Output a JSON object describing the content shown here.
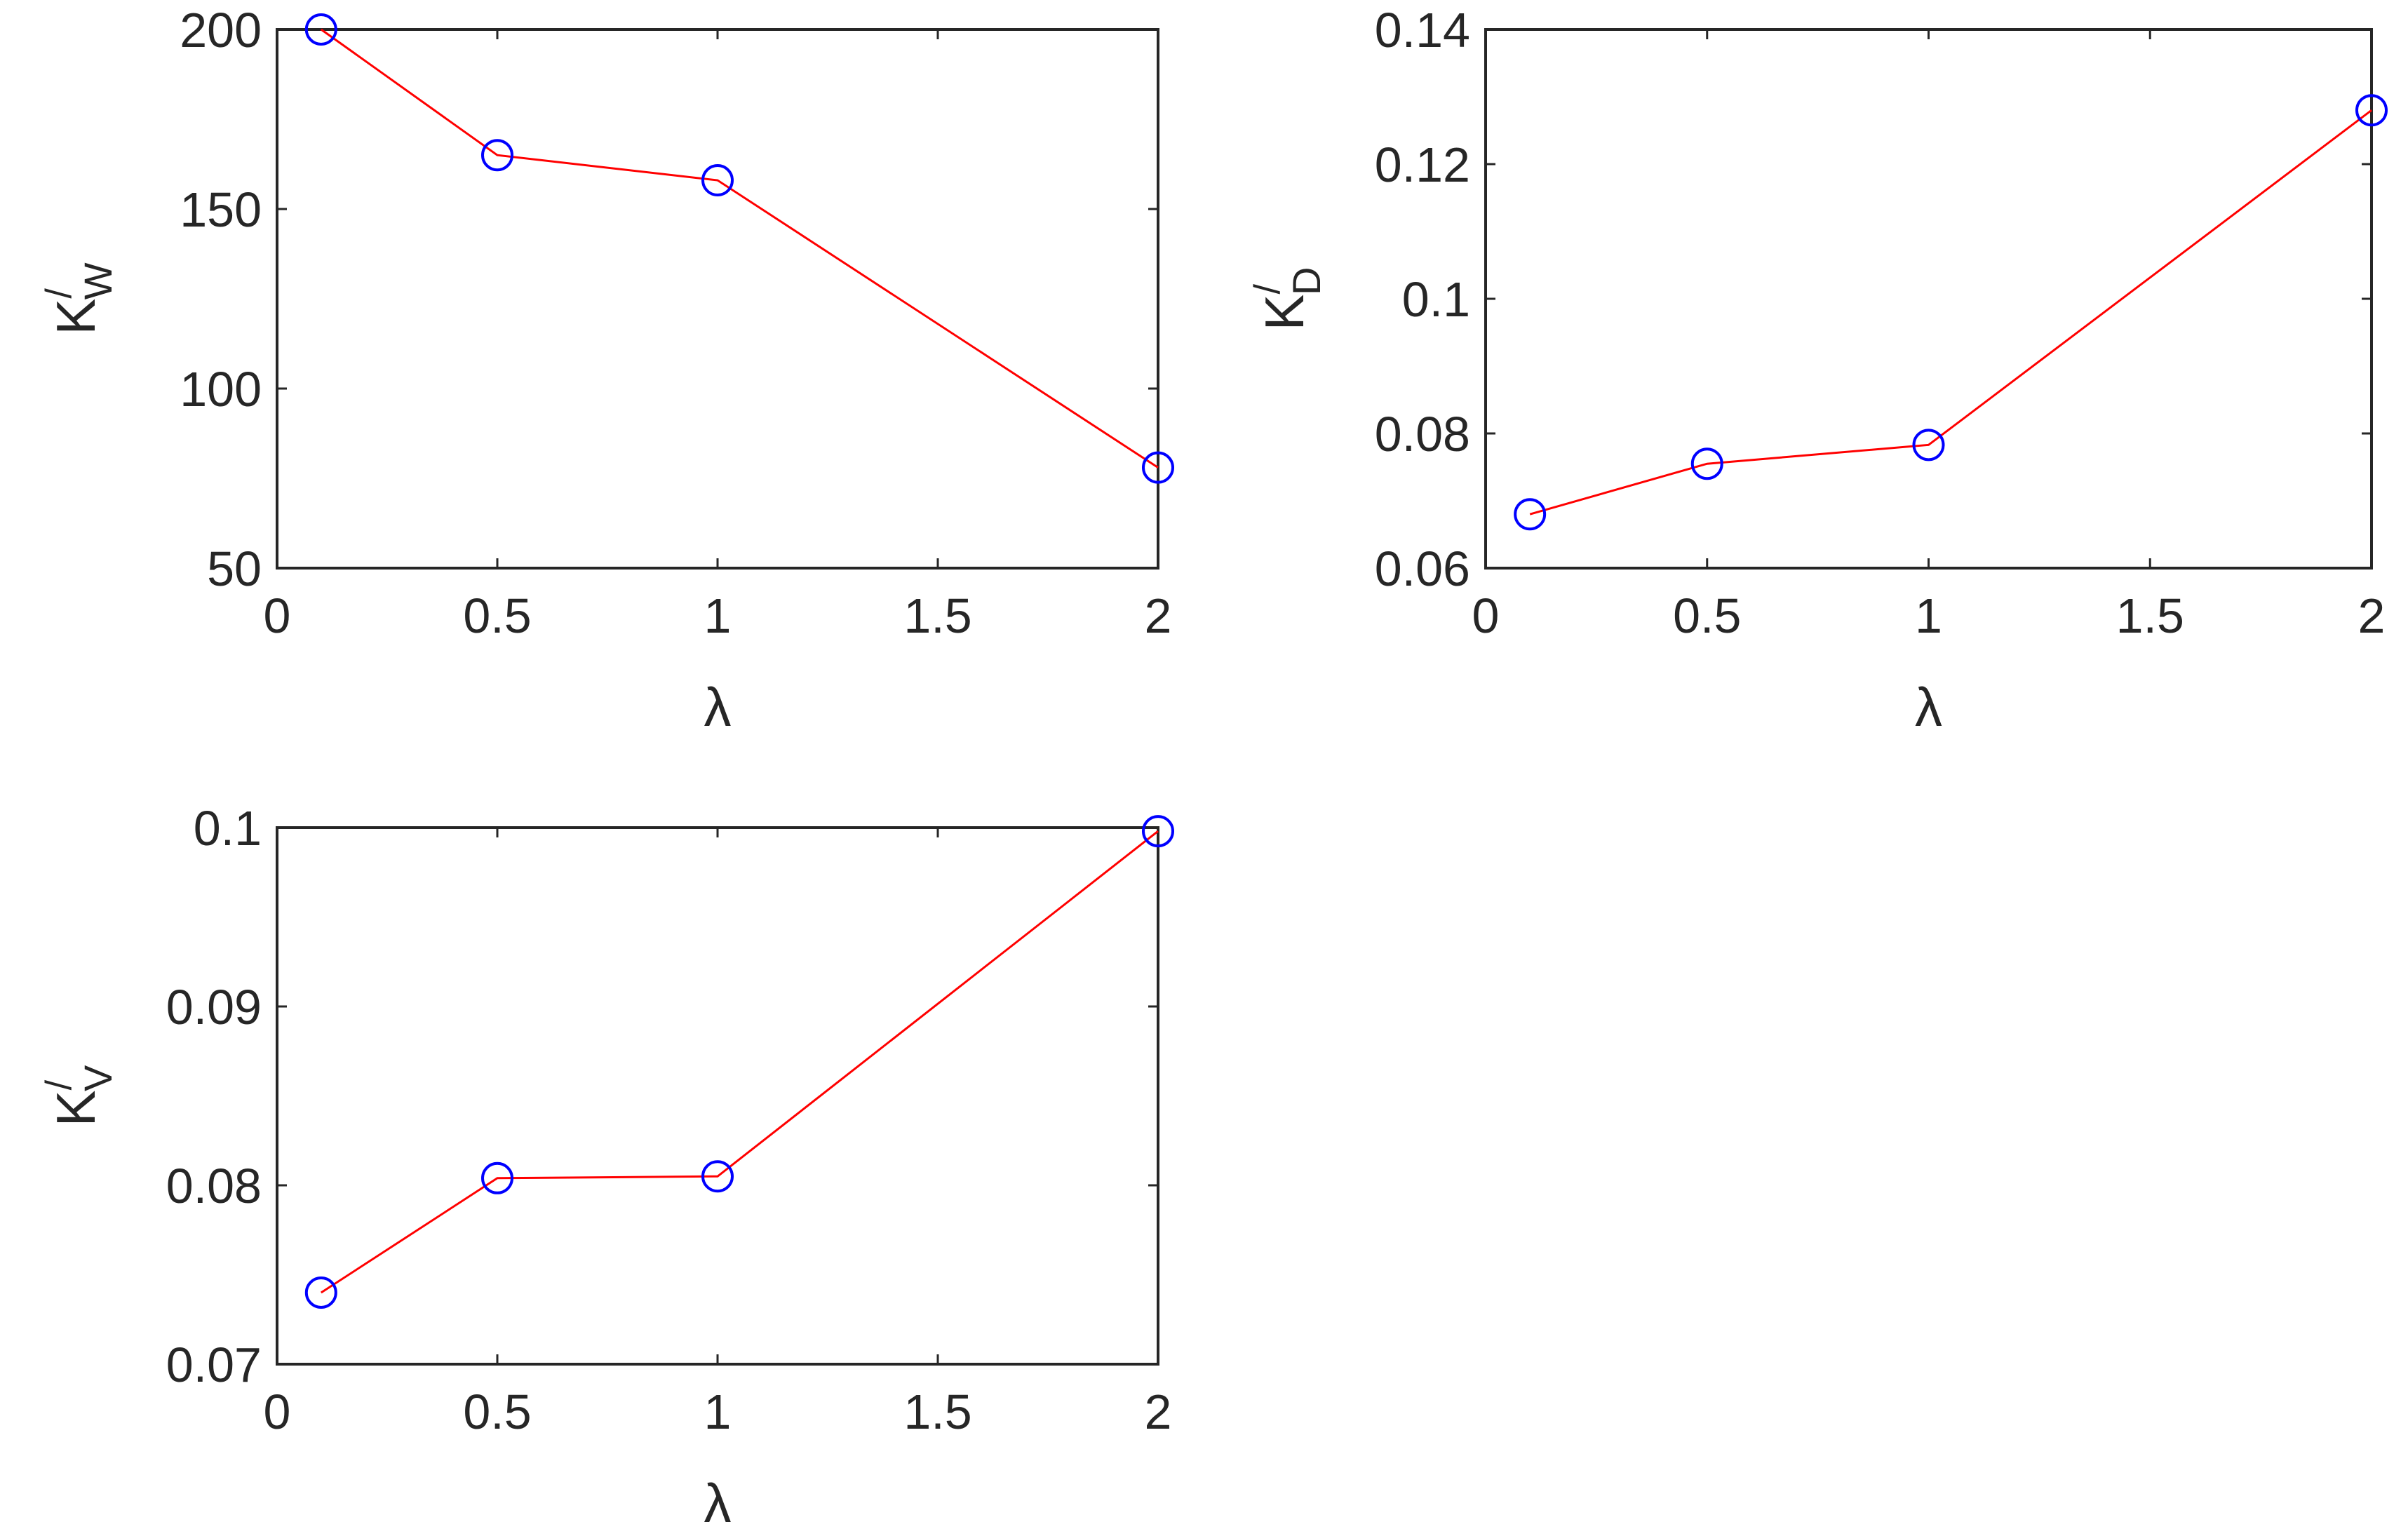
{
  "chart_data": [
    {
      "type": "line",
      "xlabel": "λ",
      "ylabel": {
        "base": "K",
        "prime": "/",
        "sub": "W"
      },
      "xlim": [
        0,
        2
      ],
      "ylim": [
        50,
        200
      ],
      "xticks": [
        0,
        0.5,
        1,
        1.5,
        2
      ],
      "xtick_labels": [
        "0",
        "0.5",
        "1",
        "1.5",
        "2"
      ],
      "yticks": [
        50,
        100,
        150,
        200
      ],
      "ytick_labels": [
        "50",
        "100",
        "150",
        "200"
      ],
      "grid": false,
      "series": [
        {
          "x": [
            0.1,
            0.5,
            1,
            2
          ],
          "y": [
            200,
            165,
            158,
            78
          ],
          "line_color": "#ff0000",
          "marker": "circle",
          "marker_color": "#0000ff"
        }
      ]
    },
    {
      "type": "line",
      "xlabel": "λ",
      "ylabel": {
        "base": "K",
        "prime": "/",
        "sub": "D"
      },
      "xlim": [
        0,
        2
      ],
      "ylim": [
        0.06,
        0.14
      ],
      "xticks": [
        0,
        0.5,
        1,
        1.5,
        2
      ],
      "xtick_labels": [
        "0",
        "0.5",
        "1",
        "1.5",
        "2"
      ],
      "yticks": [
        0.06,
        0.08,
        0.1,
        0.12,
        0.14
      ],
      "ytick_labels": [
        "0.06",
        "0.08",
        "0.1",
        "0.12",
        "0.14"
      ],
      "grid": false,
      "series": [
        {
          "x": [
            0.1,
            0.5,
            1,
            2
          ],
          "y": [
            0.068,
            0.0755,
            0.0783,
            0.128
          ],
          "line_color": "#ff0000",
          "marker": "circle",
          "marker_color": "#0000ff"
        }
      ]
    },
    {
      "type": "line",
      "xlabel": "λ",
      "ylabel": {
        "base": "K",
        "prime": "/",
        "sub": "V"
      },
      "xlim": [
        0,
        2
      ],
      "ylim": [
        0.07,
        0.1
      ],
      "xticks": [
        0,
        0.5,
        1,
        1.5,
        2
      ],
      "xtick_labels": [
        "0",
        "0.5",
        "1",
        "1.5",
        "2"
      ],
      "yticks": [
        0.07,
        0.08,
        0.09,
        0.1
      ],
      "ytick_labels": [
        "0.07",
        "0.08",
        "0.09",
        "0.1"
      ],
      "grid": false,
      "series": [
        {
          "x": [
            0.1,
            0.5,
            1,
            2
          ],
          "y": [
            0.074,
            0.0804,
            0.0805,
            0.0998
          ],
          "line_color": "#ff0000",
          "marker": "circle",
          "marker_color": "#0000ff"
        }
      ]
    }
  ]
}
